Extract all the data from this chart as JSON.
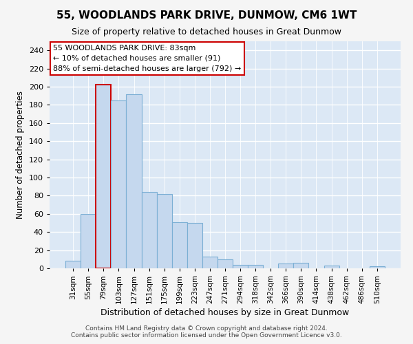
{
  "title": "55, WOODLANDS PARK DRIVE, DUNMOW, CM6 1WT",
  "subtitle": "Size of property relative to detached houses in Great Dunmow",
  "xlabel": "Distribution of detached houses by size in Great Dunmow",
  "ylabel": "Number of detached properties",
  "bar_labels": [
    "31sqm",
    "55sqm",
    "79sqm",
    "103sqm",
    "127sqm",
    "151sqm",
    "175sqm",
    "199sqm",
    "223sqm",
    "247sqm",
    "271sqm",
    "294sqm",
    "318sqm",
    "342sqm",
    "366sqm",
    "390sqm",
    "414sqm",
    "438sqm",
    "462sqm",
    "486sqm",
    "510sqm"
  ],
  "bar_values": [
    8,
    60,
    202,
    185,
    192,
    84,
    82,
    51,
    50,
    13,
    10,
    4,
    4,
    0,
    5,
    6,
    0,
    3,
    0,
    0,
    2
  ],
  "bar_color": "#c5d8ee",
  "bar_edge_color": "#7bafd4",
  "highlight_bar_index": 2,
  "highlight_edge_color": "#cc0000",
  "annotation_text": "55 WOODLANDS PARK DRIVE: 83sqm\n← 10% of detached houses are smaller (91)\n88% of semi-detached houses are larger (792) →",
  "annotation_box_color": "#ffffff",
  "annotation_box_edge": "#cc0000",
  "footer_line1": "Contains HM Land Registry data © Crown copyright and database right 2024.",
  "footer_line2": "Contains public sector information licensed under the Open Government Licence v3.0.",
  "ylim": [
    0,
    250
  ],
  "yticks": [
    0,
    20,
    40,
    60,
    80,
    100,
    120,
    140,
    160,
    180,
    200,
    220,
    240
  ],
  "fig_bg_color": "#f5f5f5",
  "plot_bg_color": "#dce8f5"
}
